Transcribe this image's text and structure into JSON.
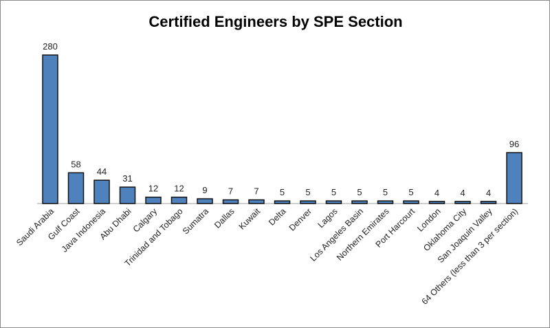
{
  "chart_data": {
    "type": "bar",
    "title": "Certified Engineers by SPE Section",
    "xlabel": "",
    "ylabel": "",
    "ylim": [
      0,
      280
    ],
    "grid": false,
    "legend": "none",
    "bar_color": "#4f81bd",
    "categories": [
      "Saudi Arabia",
      "Gulf Coast",
      "Java Indonesia",
      "Abu Dhabi",
      "Calgary",
      "Trinidad and Tobago",
      "Sumatra",
      "Dallas",
      "Kuwait",
      "Delta",
      "Denver",
      "Lagos",
      "Los Angeles Basin",
      "Northern Emirates",
      "Port Harcourt",
      "London",
      "Oklahoma City",
      "San Joaquin Valley",
      "64 Others (less than 3 per section)"
    ],
    "values": [
      280,
      58,
      44,
      31,
      12,
      12,
      9,
      7,
      7,
      5,
      5,
      5,
      5,
      5,
      5,
      4,
      4,
      4,
      96
    ]
  }
}
